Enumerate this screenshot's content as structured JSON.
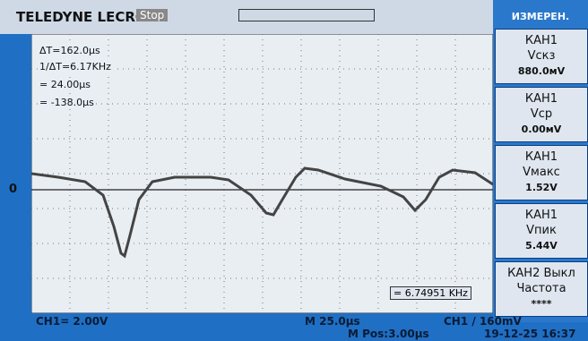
{
  "header": {
    "brand": "TELEDYNE LECROY",
    "status": "Stop"
  },
  "cursors": {
    "delta_t": "ΔT=162.0µs",
    "inv_delta_t": "1/ΔT=6.17KHz",
    "cursor_a": "= 24.00µs",
    "cursor_b": "= -138.0µs"
  },
  "trace": {
    "zero_marker": "0"
  },
  "measure_panel": {
    "title": "ИЗМЕРЕН.",
    "items": [
      {
        "channel": "КАН1",
        "name": "Vскз",
        "value": "880.0мV"
      },
      {
        "channel": "КАН1",
        "name": "Vср",
        "value": "0.00мV"
      },
      {
        "channel": "КАН1",
        "name": "Vмакс",
        "value": "1.52V"
      },
      {
        "channel": "КАН1",
        "name": "Vпик",
        "value": "5.44V"
      },
      {
        "channel": "КАН2 Выкл",
        "name": "Частота",
        "value": "****"
      }
    ]
  },
  "frequency": "= 6.74951 KHz",
  "footer": {
    "ch1_scale": "CH1= 2.00V",
    "timebase": "M 25.0µs",
    "position": "M Pos:3.00µs",
    "trigger": "CH1 / 160mV",
    "datetime": "19-12-25 16:37"
  }
}
